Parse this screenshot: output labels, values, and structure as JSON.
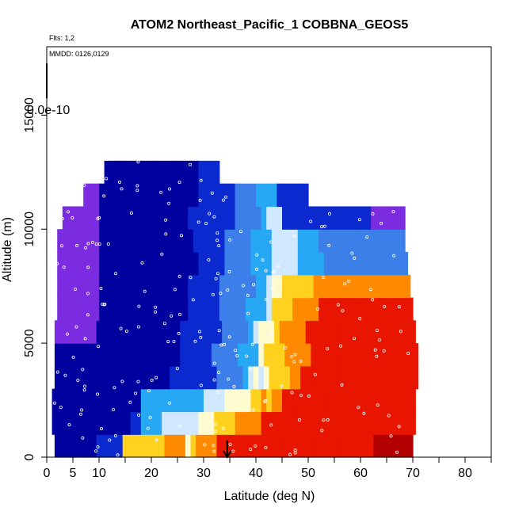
{
  "chart_data": {
    "type": "heatmap",
    "title": "ATOM2 Northeast_Pacific_1 COBBNA_GEOS5",
    "annotations": {
      "flights": "Flts: 1,2",
      "dates": "MMDD: 0126,0129",
      "colorbar_label": "0.0e-10"
    },
    "xlabel": "Latitude (deg N)",
    "ylabel": "Altitude (m)",
    "xlim": [
      0,
      85
    ],
    "ylim": [
      0,
      18000
    ],
    "x_ticks": [
      0,
      5,
      10,
      20,
      30,
      40,
      50,
      60,
      70,
      80
    ],
    "x_minor_ticks": [
      15,
      25,
      35,
      45,
      55,
      65,
      75,
      85
    ],
    "y_ticks": [
      0,
      5000,
      10000,
      15000
    ],
    "grid": false,
    "marker": {
      "label": "arrow",
      "x": 34.5
    },
    "colors": {
      "purple": "#7b2be0",
      "navy": "#00009f",
      "blue": "#0a2ad0",
      "midblue": "#3d7fe8",
      "skyblue": "#27a8f5",
      "paleblue": "#cfe8ff",
      "cream": "#fffbd0",
      "yellow": "#ffd21f",
      "orange": "#ff8a00",
      "red": "#e81500",
      "darkred": "#b30000"
    },
    "ranges": [
      {
        "alt": 500,
        "lat": [
          1.5,
          70
        ]
      },
      {
        "alt": 1500,
        "lat": [
          1,
          70.5
        ]
      },
      {
        "alt": 2500,
        "lat": [
          1,
          70.5
        ]
      },
      {
        "alt": 3500,
        "lat": [
          1.5,
          71
        ]
      },
      {
        "alt": 4500,
        "lat": [
          1.5,
          71
        ]
      },
      {
        "alt": 5500,
        "lat": [
          1.5,
          70.5
        ]
      },
      {
        "alt": 6500,
        "lat": [
          2,
          70
        ]
      },
      {
        "alt": 7500,
        "lat": [
          2,
          69.5
        ]
      },
      {
        "alt": 8500,
        "lat": [
          2,
          69
        ]
      },
      {
        "alt": 9500,
        "lat": [
          2,
          68.5
        ]
      },
      {
        "alt": 10500,
        "lat": [
          3,
          68.5
        ]
      },
      {
        "alt": 11500,
        "lat": [
          7,
          50
        ]
      },
      {
        "alt": 12500,
        "lat": [
          11,
          33
        ]
      }
    ]
  }
}
